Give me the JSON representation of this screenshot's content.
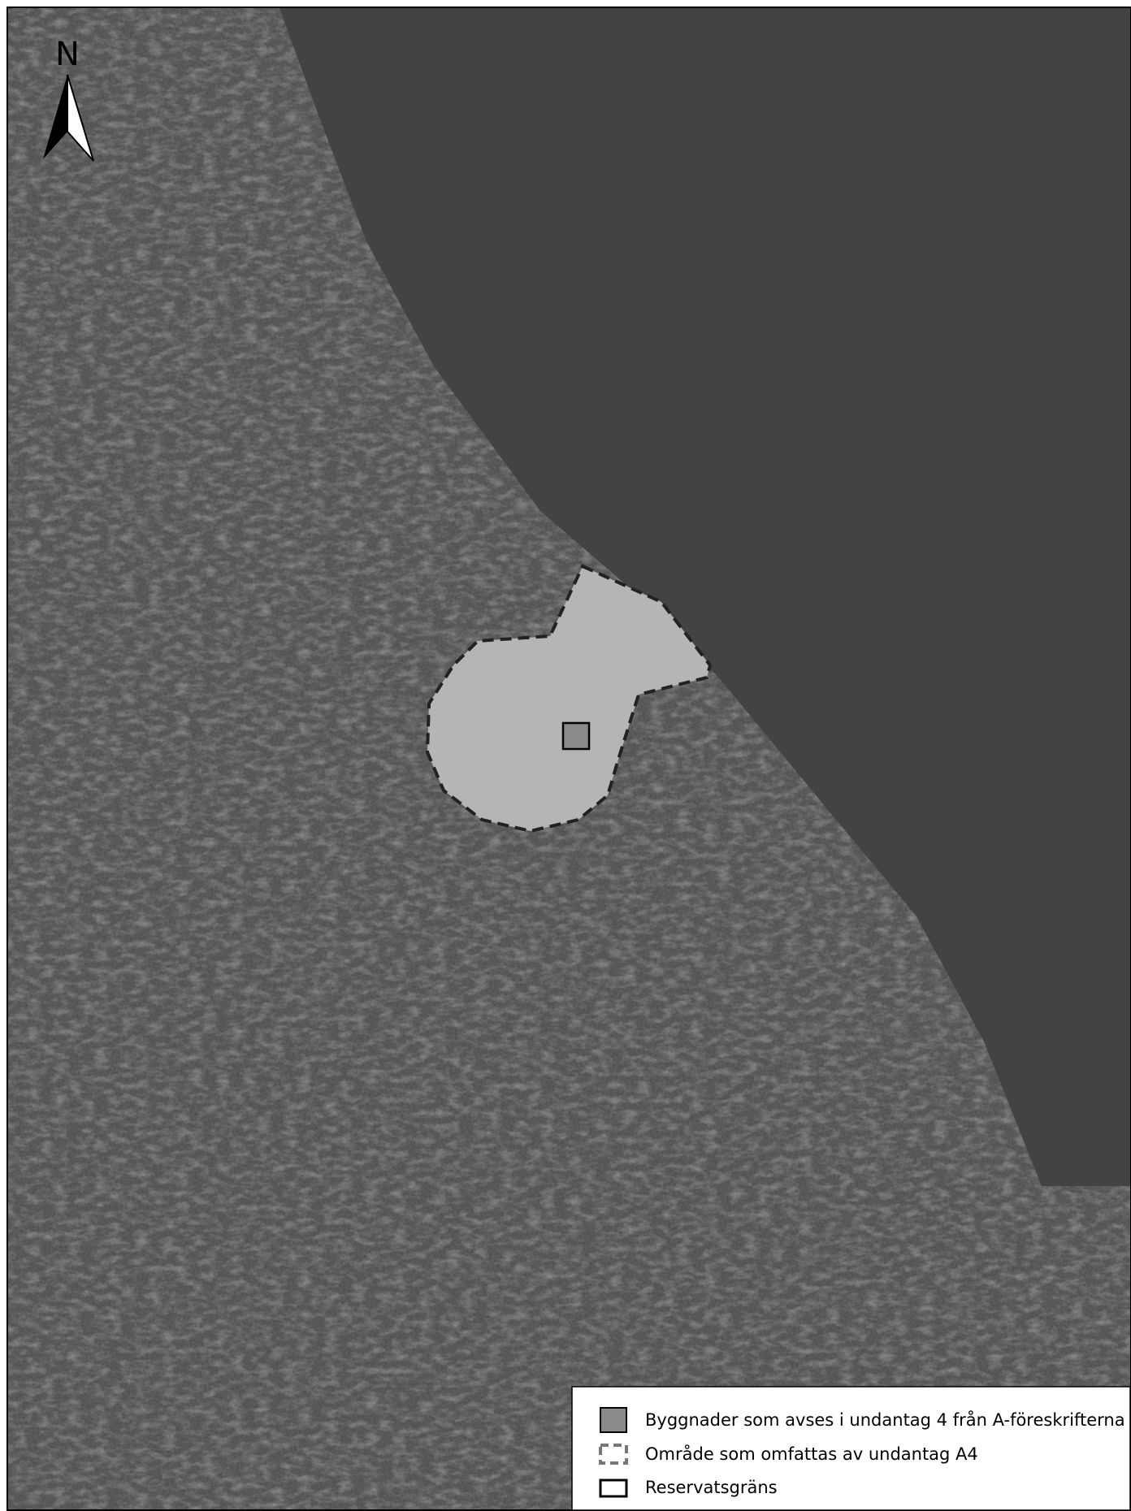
{
  "north_label": "N",
  "legend": {
    "items": [
      {
        "label": "Byggnader som avses i undantag 4 från A-föreskrifterna"
      },
      {
        "label": "Område som omfattas av undantag A4"
      },
      {
        "label": "Reservatsgräns"
      }
    ]
  }
}
